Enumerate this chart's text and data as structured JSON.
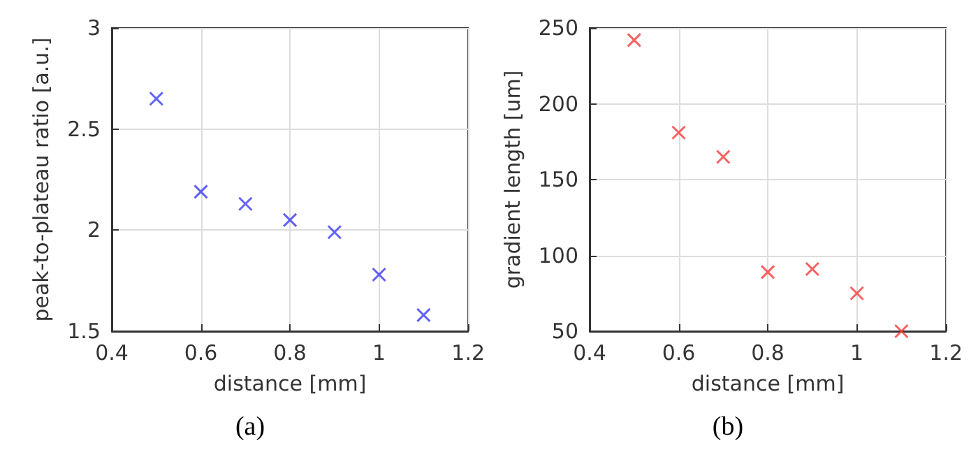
{
  "chart_data": [
    {
      "type": "scatter",
      "xlabel": "distance [mm]",
      "ylabel": "peak-to-plateau ratio [a.u.]",
      "x": [
        0.5,
        0.6,
        0.7,
        0.8,
        0.9,
        1.0,
        1.1
      ],
      "series": [
        {
          "color": "#3b3bf5",
          "values": [
            2.65,
            2.19,
            2.13,
            2.05,
            1.99,
            1.78,
            1.58
          ]
        }
      ],
      "xlim": [
        0.4,
        1.2
      ],
      "xticks": [
        0.4,
        0.6,
        0.8,
        1,
        1.2
      ],
      "ylim": [
        1.5,
        3
      ],
      "yticks": [
        1.5,
        2,
        2.5,
        3
      ],
      "grid": true,
      "marker": "cross",
      "annotations": [
        "(a)"
      ]
    },
    {
      "type": "scatter",
      "xlabel": "distance [mm]",
      "ylabel": "gradient length [um]",
      "x": [
        0.5,
        0.6,
        0.7,
        0.8,
        0.9,
        1.0,
        1.1
      ],
      "series": [
        {
          "color": "#f53b3b",
          "values": [
            242,
            181,
            165,
            89,
            91,
            75,
            50
          ]
        }
      ],
      "xlim": [
        0.4,
        1.2
      ],
      "xticks": [
        0.4,
        0.6,
        0.8,
        1,
        1.2
      ],
      "ylim": [
        50,
        250
      ],
      "yticks": [
        50,
        100,
        150,
        200,
        250
      ],
      "grid": true,
      "marker": "cross",
      "annotations": [
        "(b)"
      ]
    }
  ]
}
